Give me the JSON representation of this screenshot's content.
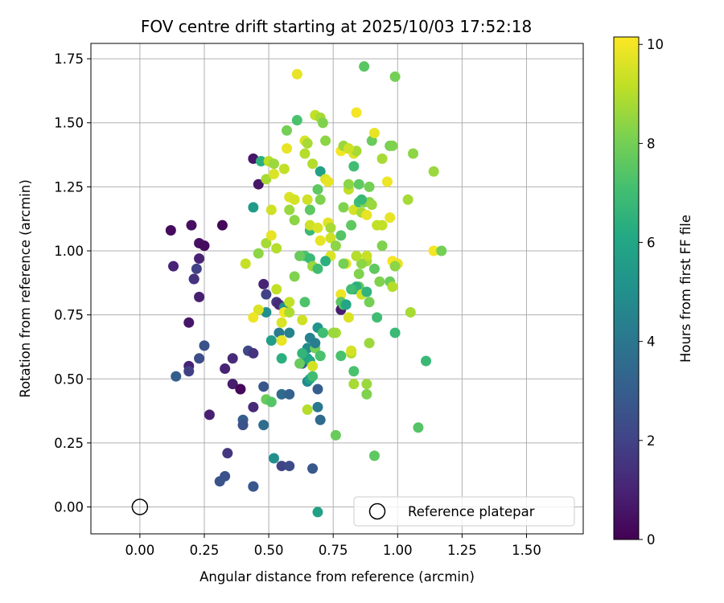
{
  "chart_data": {
    "type": "scatter",
    "title": "FOV centre drift starting at 2025/10/03 17:52:18",
    "xlabel": "Angular distance from reference (arcmin)",
    "ylabel": "Rotation from reference (arcmin)",
    "xlim": [
      -0.19,
      1.72
    ],
    "ylim": [
      -0.105,
      1.81
    ],
    "xticks": [
      0.0,
      0.25,
      0.5,
      0.75,
      1.0,
      1.25,
      1.5
    ],
    "xtick_labels": [
      "0.00",
      "0.25",
      "0.50",
      "0.75",
      "1.00",
      "1.25",
      "1.50"
    ],
    "yticks": [
      0.0,
      0.25,
      0.5,
      0.75,
      1.0,
      1.25,
      1.5,
      1.75
    ],
    "ytick_labels": [
      "0.00",
      "0.25",
      "0.50",
      "0.75",
      "1.00",
      "1.25",
      "1.50",
      "1.75"
    ],
    "grid": true,
    "colorbar": {
      "label": "Hours from first FF file",
      "range": [
        0,
        10.15
      ],
      "ticks": [
        0,
        2,
        4,
        6,
        8,
        10
      ],
      "tick_labels": [
        "0",
        "2",
        "4",
        "6",
        "8",
        "10"
      ],
      "colormap": "viridis"
    },
    "reference": {
      "x": 0.0,
      "y": 0.0,
      "label": "Reference platepar"
    },
    "legend": {
      "location": "lower-right",
      "entries": [
        "Reference platepar"
      ]
    },
    "points": [
      {
        "x": 0.12,
        "y": 1.08,
        "h": 0.3
      },
      {
        "x": 0.2,
        "y": 1.1,
        "h": 0.4
      },
      {
        "x": 0.23,
        "y": 1.03,
        "h": 0.5
      },
      {
        "x": 0.25,
        "y": 1.02,
        "h": 0.3
      },
      {
        "x": 0.32,
        "y": 1.1,
        "h": 0.2
      },
      {
        "x": 0.13,
        "y": 0.94,
        "h": 1.0
      },
      {
        "x": 0.21,
        "y": 0.89,
        "h": 1.3
      },
      {
        "x": 0.22,
        "y": 0.93,
        "h": 2.0
      },
      {
        "x": 0.23,
        "y": 0.97,
        "h": 1.0
      },
      {
        "x": 0.23,
        "y": 0.82,
        "h": 0.9
      },
      {
        "x": 0.21,
        "y": 0.89,
        "h": 1.5
      },
      {
        "x": 0.19,
        "y": 0.72,
        "h": 0.6
      },
      {
        "x": 0.19,
        "y": 0.55,
        "h": 1.0
      },
      {
        "x": 0.19,
        "y": 0.53,
        "h": 1.9
      },
      {
        "x": 0.14,
        "y": 0.51,
        "h": 3.0
      },
      {
        "x": 0.23,
        "y": 0.58,
        "h": 2.4
      },
      {
        "x": 0.25,
        "y": 0.63,
        "h": 2.5
      },
      {
        "x": 0.27,
        "y": 0.36,
        "h": 0.9
      },
      {
        "x": 0.33,
        "y": 0.54,
        "h": 1.0
      },
      {
        "x": 0.36,
        "y": 0.58,
        "h": 1.2
      },
      {
        "x": 0.36,
        "y": 0.48,
        "h": 0.8
      },
      {
        "x": 0.39,
        "y": 0.46,
        "h": 0.5
      },
      {
        "x": 0.39,
        "y": 0.46,
        "h": 0.2
      },
      {
        "x": 0.42,
        "y": 0.61,
        "h": 2.2
      },
      {
        "x": 0.44,
        "y": 0.6,
        "h": 1.5
      },
      {
        "x": 0.44,
        "y": 0.39,
        "h": 1.2
      },
      {
        "x": 0.4,
        "y": 0.34,
        "h": 3.0
      },
      {
        "x": 0.4,
        "y": 0.32,
        "h": 2.6
      },
      {
        "x": 0.34,
        "y": 0.21,
        "h": 1.6
      },
      {
        "x": 0.33,
        "y": 0.12,
        "h": 2.6
      },
      {
        "x": 0.31,
        "y": 0.1,
        "h": 2.6
      },
      {
        "x": 0.44,
        "y": 0.08,
        "h": 2.4
      },
      {
        "x": 0.44,
        "y": 0.08,
        "h": 2.8
      },
      {
        "x": 0.48,
        "y": 0.47,
        "h": 2.7
      },
      {
        "x": 0.48,
        "y": 0.32,
        "h": 3.6
      },
      {
        "x": 0.44,
        "y": 1.36,
        "h": 0.6
      },
      {
        "x": 0.46,
        "y": 1.26,
        "h": 0.6
      },
      {
        "x": 0.44,
        "y": 1.17,
        "h": 5.5
      },
      {
        "x": 0.47,
        "y": 1.35,
        "h": 6.4
      },
      {
        "x": 0.48,
        "y": 0.87,
        "h": 1.0
      },
      {
        "x": 0.49,
        "y": 0.83,
        "h": 2.0
      },
      {
        "x": 0.53,
        "y": 0.8,
        "h": 1.6
      },
      {
        "x": 0.54,
        "y": 0.79,
        "h": 1.2
      },
      {
        "x": 0.49,
        "y": 0.76,
        "h": 5.0
      },
      {
        "x": 0.51,
        "y": 0.65,
        "h": 5.6
      },
      {
        "x": 0.54,
        "y": 0.68,
        "h": 4.2
      },
      {
        "x": 0.55,
        "y": 0.58,
        "h": 6.4
      },
      {
        "x": 0.58,
        "y": 0.68,
        "h": 4.5
      },
      {
        "x": 0.55,
        "y": 0.44,
        "h": 3.5
      },
      {
        "x": 0.58,
        "y": 0.44,
        "h": 3.2
      },
      {
        "x": 0.49,
        "y": 0.42,
        "h": 7.8
      },
      {
        "x": 0.51,
        "y": 0.41,
        "h": 7.4
      },
      {
        "x": 0.52,
        "y": 0.19,
        "h": 5.0
      },
      {
        "x": 0.55,
        "y": 0.16,
        "h": 2.0
      },
      {
        "x": 0.58,
        "y": 0.16,
        "h": 2.3
      },
      {
        "x": 0.67,
        "y": 0.15,
        "h": 2.8
      },
      {
        "x": 0.69,
        "y": -0.02,
        "h": 5.8
      },
      {
        "x": 0.7,
        "y": 0.34,
        "h": 3.5
      },
      {
        "x": 0.69,
        "y": 0.39,
        "h": 4.0
      },
      {
        "x": 0.69,
        "y": 0.46,
        "h": 3.0
      },
      {
        "x": 0.65,
        "y": 0.49,
        "h": 4.8
      },
      {
        "x": 0.66,
        "y": 0.5,
        "h": 5.8
      },
      {
        "x": 0.67,
        "y": 0.51,
        "h": 7.0
      },
      {
        "x": 0.65,
        "y": 0.38,
        "h": 9.0
      },
      {
        "x": 0.63,
        "y": 0.56,
        "h": 3.0
      },
      {
        "x": 0.65,
        "y": 0.62,
        "h": 4.8
      },
      {
        "x": 0.66,
        "y": 0.66,
        "h": 4.5
      },
      {
        "x": 0.65,
        "y": 0.58,
        "h": 5.8
      },
      {
        "x": 0.68,
        "y": 0.62,
        "h": 8.0
      },
      {
        "x": 0.66,
        "y": 0.57,
        "h": 6.0
      },
      {
        "x": 0.67,
        "y": 0.55,
        "h": 9.5
      },
      {
        "x": 0.7,
        "y": 0.59,
        "h": 7.2
      },
      {
        "x": 0.69,
        "y": 0.7,
        "h": 5.2
      },
      {
        "x": 0.71,
        "y": 0.68,
        "h": 6.0
      },
      {
        "x": 0.68,
        "y": 0.64,
        "h": 4.3
      },
      {
        "x": 0.64,
        "y": 0.8,
        "h": 7.3
      },
      {
        "x": 0.63,
        "y": 0.73,
        "h": 9.4
      },
      {
        "x": 0.56,
        "y": 0.78,
        "h": 5.0
      },
      {
        "x": 0.55,
        "y": 0.72,
        "h": 9.6
      },
      {
        "x": 0.56,
        "y": 0.76,
        "h": 10.0
      },
      {
        "x": 0.58,
        "y": 0.76,
        "h": 8.9
      },
      {
        "x": 0.58,
        "y": 0.8,
        "h": 9.2
      },
      {
        "x": 0.53,
        "y": 0.85,
        "h": 9.2
      },
      {
        "x": 0.55,
        "y": 0.65,
        "h": 9.8
      },
      {
        "x": 0.46,
        "y": 0.77,
        "h": 9.6
      },
      {
        "x": 0.44,
        "y": 0.74,
        "h": 9.9
      },
      {
        "x": 0.41,
        "y": 0.95,
        "h": 9.3
      },
      {
        "x": 0.46,
        "y": 0.99,
        "h": 8.4
      },
      {
        "x": 0.49,
        "y": 1.03,
        "h": 8.8
      },
      {
        "x": 0.51,
        "y": 1.06,
        "h": 9.8
      },
      {
        "x": 0.53,
        "y": 1.01,
        "h": 9.0
      },
      {
        "x": 0.51,
        "y": 1.16,
        "h": 9.4
      },
      {
        "x": 0.49,
        "y": 1.28,
        "h": 8.8
      },
      {
        "x": 0.5,
        "y": 1.35,
        "h": 9.1
      },
      {
        "x": 0.52,
        "y": 1.34,
        "h": 8.6
      },
      {
        "x": 0.52,
        "y": 1.3,
        "h": 9.6
      },
      {
        "x": 0.56,
        "y": 1.32,
        "h": 9.2
      },
      {
        "x": 0.57,
        "y": 1.4,
        "h": 9.8
      },
      {
        "x": 0.57,
        "y": 1.47,
        "h": 8.0
      },
      {
        "x": 0.61,
        "y": 1.51,
        "h": 7.2
      },
      {
        "x": 0.61,
        "y": 1.69,
        "h": 9.8
      },
      {
        "x": 0.58,
        "y": 1.21,
        "h": 9.6
      },
      {
        "x": 0.6,
        "y": 1.2,
        "h": 9.5
      },
      {
        "x": 0.58,
        "y": 1.16,
        "h": 8.6
      },
      {
        "x": 0.6,
        "y": 1.12,
        "h": 8.4
      },
      {
        "x": 0.64,
        "y": 1.38,
        "h": 9.0
      },
      {
        "x": 0.64,
        "y": 1.43,
        "h": 9.6
      },
      {
        "x": 0.65,
        "y": 1.42,
        "h": 8.8
      },
      {
        "x": 0.65,
        "y": 1.2,
        "h": 9.4
      },
      {
        "x": 0.66,
        "y": 1.16,
        "h": 7.6
      },
      {
        "x": 0.67,
        "y": 1.34,
        "h": 9.0
      },
      {
        "x": 0.68,
        "y": 1.53,
        "h": 9.2
      },
      {
        "x": 0.7,
        "y": 1.52,
        "h": 8.8
      },
      {
        "x": 0.71,
        "y": 1.5,
        "h": 8.2
      },
      {
        "x": 0.72,
        "y": 1.43,
        "h": 8.4
      },
      {
        "x": 0.7,
        "y": 1.31,
        "h": 5.8
      },
      {
        "x": 0.69,
        "y": 1.24,
        "h": 7.6
      },
      {
        "x": 0.7,
        "y": 1.2,
        "h": 8.2
      },
      {
        "x": 0.72,
        "y": 1.28,
        "h": 9.6
      },
      {
        "x": 0.73,
        "y": 1.27,
        "h": 9.8
      },
      {
        "x": 0.66,
        "y": 1.08,
        "h": 6.8
      },
      {
        "x": 0.66,
        "y": 1.1,
        "h": 9.4
      },
      {
        "x": 0.69,
        "y": 1.09,
        "h": 9.6
      },
      {
        "x": 0.7,
        "y": 1.04,
        "h": 9.8
      },
      {
        "x": 0.64,
        "y": 0.98,
        "h": 7.2
      },
      {
        "x": 0.66,
        "y": 0.97,
        "h": 6.8
      },
      {
        "x": 0.67,
        "y": 0.94,
        "h": 8.6
      },
      {
        "x": 0.69,
        "y": 0.93,
        "h": 7.0
      },
      {
        "x": 0.62,
        "y": 0.98,
        "h": 7.8
      },
      {
        "x": 0.6,
        "y": 0.9,
        "h": 8.2
      },
      {
        "x": 0.74,
        "y": 1.05,
        "h": 9.4
      },
      {
        "x": 0.73,
        "y": 1.11,
        "h": 9.7
      },
      {
        "x": 0.74,
        "y": 1.09,
        "h": 8.8
      },
      {
        "x": 0.76,
        "y": 1.02,
        "h": 8.4
      },
      {
        "x": 0.78,
        "y": 1.06,
        "h": 7.4
      },
      {
        "x": 0.79,
        "y": 1.17,
        "h": 8.2
      },
      {
        "x": 0.81,
        "y": 1.24,
        "h": 9.2
      },
      {
        "x": 0.81,
        "y": 1.26,
        "h": 8.4
      },
      {
        "x": 0.82,
        "y": 1.1,
        "h": 7.6
      },
      {
        "x": 0.83,
        "y": 1.16,
        "h": 9.5
      },
      {
        "x": 0.85,
        "y": 1.19,
        "h": 7.0
      },
      {
        "x": 0.86,
        "y": 1.15,
        "h": 8.8
      },
      {
        "x": 0.87,
        "y": 1.19,
        "h": 8.2
      },
      {
        "x": 0.88,
        "y": 1.14,
        "h": 9.8
      },
      {
        "x": 0.89,
        "y": 1.19,
        "h": 8.4
      },
      {
        "x": 0.9,
        "y": 1.18,
        "h": 8.6
      },
      {
        "x": 0.89,
        "y": 1.25,
        "h": 8.0
      },
      {
        "x": 0.86,
        "y": 1.2,
        "h": 6.8
      },
      {
        "x": 0.83,
        "y": 1.33,
        "h": 7.0
      },
      {
        "x": 0.85,
        "y": 1.26,
        "h": 7.6
      },
      {
        "x": 0.83,
        "y": 1.38,
        "h": 9.6
      },
      {
        "x": 0.84,
        "y": 1.39,
        "h": 8.8
      },
      {
        "x": 0.8,
        "y": 1.4,
        "h": 9.8
      },
      {
        "x": 0.78,
        "y": 1.39,
        "h": 10.0
      },
      {
        "x": 0.79,
        "y": 1.41,
        "h": 8.6
      },
      {
        "x": 0.81,
        "y": 1.4,
        "h": 9.4
      },
      {
        "x": 0.84,
        "y": 1.54,
        "h": 10.0
      },
      {
        "x": 0.87,
        "y": 1.72,
        "h": 7.5
      },
      {
        "x": 0.9,
        "y": 1.43,
        "h": 7.8
      },
      {
        "x": 0.91,
        "y": 1.46,
        "h": 9.8
      },
      {
        "x": 0.94,
        "y": 1.36,
        "h": 8.8
      },
      {
        "x": 0.97,
        "y": 1.41,
        "h": 8.0
      },
      {
        "x": 0.98,
        "y": 1.41,
        "h": 8.2
      },
      {
        "x": 0.99,
        "y": 1.68,
        "h": 8.0
      },
      {
        "x": 1.06,
        "y": 1.38,
        "h": 8.4
      },
      {
        "x": 0.96,
        "y": 1.27,
        "h": 9.9
      },
      {
        "x": 1.04,
        "y": 1.2,
        "h": 8.8
      },
      {
        "x": 1.14,
        "y": 1.31,
        "h": 8.6
      },
      {
        "x": 0.92,
        "y": 1.1,
        "h": 9.2
      },
      {
        "x": 0.94,
        "y": 1.1,
        "h": 9.2
      },
      {
        "x": 0.94,
        "y": 1.02,
        "h": 8.2
      },
      {
        "x": 0.97,
        "y": 1.13,
        "h": 9.8
      },
      {
        "x": 0.98,
        "y": 0.96,
        "h": 10.0
      },
      {
        "x": 1.0,
        "y": 0.95,
        "h": 9.8
      },
      {
        "x": 0.99,
        "y": 0.94,
        "h": 8.4
      },
      {
        "x": 1.14,
        "y": 1.0,
        "h": 10.0
      },
      {
        "x": 1.17,
        "y": 1.0,
        "h": 8.0
      },
      {
        "x": 0.93,
        "y": 0.88,
        "h": 8.2
      },
      {
        "x": 0.97,
        "y": 0.88,
        "h": 7.8
      },
      {
        "x": 0.98,
        "y": 0.86,
        "h": 9.0
      },
      {
        "x": 0.91,
        "y": 0.93,
        "h": 7.6
      },
      {
        "x": 0.88,
        "y": 0.96,
        "h": 8.8
      },
      {
        "x": 0.88,
        "y": 0.98,
        "h": 9.3
      },
      {
        "x": 0.86,
        "y": 0.95,
        "h": 8.4
      },
      {
        "x": 0.84,
        "y": 0.98,
        "h": 9.0
      },
      {
        "x": 0.85,
        "y": 0.91,
        "h": 8.2
      },
      {
        "x": 0.85,
        "y": 0.86,
        "h": 7.8
      },
      {
        "x": 0.83,
        "y": 0.85,
        "h": 5.8
      },
      {
        "x": 0.84,
        "y": 0.86,
        "h": 6.4
      },
      {
        "x": 0.82,
        "y": 0.85,
        "h": 7.0
      },
      {
        "x": 0.86,
        "y": 0.83,
        "h": 9.4
      },
      {
        "x": 0.88,
        "y": 0.84,
        "h": 6.6
      },
      {
        "x": 0.89,
        "y": 0.8,
        "h": 8.0
      },
      {
        "x": 0.78,
        "y": 0.83,
        "h": 9.9
      },
      {
        "x": 0.78,
        "y": 0.8,
        "h": 7.6
      },
      {
        "x": 0.78,
        "y": 0.77,
        "h": 0.8
      },
      {
        "x": 0.79,
        "y": 0.79,
        "h": 7.4
      },
      {
        "x": 0.8,
        "y": 0.79,
        "h": 6.0
      },
      {
        "x": 0.81,
        "y": 0.74,
        "h": 9.6
      },
      {
        "x": 0.8,
        "y": 0.95,
        "h": 9.8
      },
      {
        "x": 0.79,
        "y": 0.95,
        "h": 8.0
      },
      {
        "x": 0.74,
        "y": 0.98,
        "h": 9.6
      },
      {
        "x": 0.72,
        "y": 0.96,
        "h": 6.4
      },
      {
        "x": 0.76,
        "y": 0.68,
        "h": 8.8
      },
      {
        "x": 0.75,
        "y": 0.68,
        "h": 8.6
      },
      {
        "x": 0.82,
        "y": 0.6,
        "h": 9.0
      },
      {
        "x": 0.82,
        "y": 0.61,
        "h": 9.5
      },
      {
        "x": 0.78,
        "y": 0.59,
        "h": 7.2
      },
      {
        "x": 0.83,
        "y": 0.53,
        "h": 7.2
      },
      {
        "x": 0.83,
        "y": 0.48,
        "h": 8.8
      },
      {
        "x": 0.89,
        "y": 0.64,
        "h": 8.6
      },
      {
        "x": 0.92,
        "y": 0.74,
        "h": 7.0
      },
      {
        "x": 0.88,
        "y": 0.48,
        "h": 8.6
      },
      {
        "x": 0.88,
        "y": 0.44,
        "h": 8.2
      },
      {
        "x": 0.91,
        "y": 0.2,
        "h": 7.6
      },
      {
        "x": 1.05,
        "y": 0.76,
        "h": 8.8
      },
      {
        "x": 0.99,
        "y": 0.68,
        "h": 6.8
      },
      {
        "x": 1.11,
        "y": 0.57,
        "h": 6.8
      },
      {
        "x": 1.08,
        "y": 0.31,
        "h": 7.4
      },
      {
        "x": 0.76,
        "y": 0.28,
        "h": 7.8
      },
      {
        "x": 0.71,
        "y": 0.68,
        "h": 7.0
      },
      {
        "x": 0.7,
        "y": 0.59,
        "h": 7.2
      },
      {
        "x": 0.63,
        "y": 0.6,
        "h": 6.6
      },
      {
        "x": 0.62,
        "y": 0.56,
        "h": 7.8
      }
    ]
  }
}
